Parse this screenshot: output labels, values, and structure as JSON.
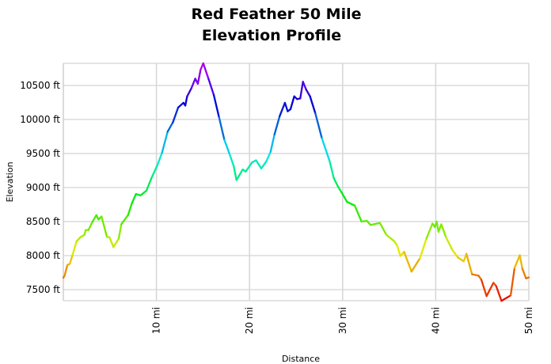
{
  "chart_data": {
    "type": "line",
    "title": "Red Feather 50 Mile",
    "subtitle": "Elevation Profile",
    "xlabel": "Distance",
    "ylabel": "Elevation",
    "xlim": [
      0,
      50
    ],
    "ylim": [
      7340,
      10830
    ],
    "grid": true,
    "legend": "none",
    "color_scale": "rainbow by elevation (red low → magenta high)",
    "x_ticks": [
      {
        "value": 10,
        "label": "10 mi"
      },
      {
        "value": 20,
        "label": "20 mi"
      },
      {
        "value": 30,
        "label": "30 mi"
      },
      {
        "value": 40,
        "label": "40 mi"
      },
      {
        "value": 50,
        "label": "50 mi"
      }
    ],
    "y_ticks": [
      {
        "value": 7500,
        "label": "7500 ft"
      },
      {
        "value": 8000,
        "label": "8000 ft"
      },
      {
        "value": 8500,
        "label": "8500 ft"
      },
      {
        "value": 9000,
        "label": "9000 ft"
      },
      {
        "value": 9500,
        "label": "9500 ft"
      },
      {
        "value": 10000,
        "label": "10000 ft"
      },
      {
        "value": 10500,
        "label": "10500 ft"
      }
    ],
    "series": [
      {
        "x": [
          0,
          0.14,
          0.43,
          0.7,
          1.0,
          1.42,
          1.84,
          2.27,
          2.4,
          2.7,
          3.1,
          3.55,
          3.77,
          4.1,
          4.68,
          4.96,
          5.38,
          5.95,
          6.23,
          6.95,
          7.37,
          7.8,
          8.3,
          8.93,
          9.5,
          10.06,
          10.6,
          11.2,
          11.76,
          12.33,
          12.9,
          13.1,
          13.3,
          13.74,
          14.17,
          14.45,
          14.74,
          15.03,
          15.6,
          16.16,
          16.73,
          17.3,
          17.86,
          18.3,
          18.6,
          19.27,
          19.6,
          20.27,
          20.7,
          21.26,
          21.83,
          22.26,
          22.68,
          23.24,
          23.8,
          24.1,
          24.4,
          24.8,
          25.1,
          25.45,
          25.74,
          26.08,
          26.5,
          27.07,
          27.78,
          28.6,
          29.05,
          29.5,
          29.9,
          30.47,
          31.3,
          32.03,
          32.6,
          33.0,
          34.0,
          34.7,
          35.55,
          35.85,
          36.2,
          36.6,
          37.4,
          38.3,
          39.0,
          39.65,
          39.9,
          40.1,
          40.3,
          40.6,
          41.1,
          41.8,
          42.37,
          43.0,
          43.3,
          43.9,
          44.6,
          44.9,
          45.46,
          46.2,
          46.5,
          47.06,
          48.05,
          48.47,
          49.03,
          49.3,
          49.7,
          50
        ],
        "y": [
          7674,
          7705,
          7860,
          7880,
          8015,
          8210,
          8270,
          8305,
          8375,
          8375,
          8490,
          8595,
          8530,
          8575,
          8275,
          8270,
          8125,
          8250,
          8460,
          8595,
          8770,
          8905,
          8885,
          8955,
          9150,
          9315,
          9510,
          9820,
          9955,
          10175,
          10245,
          10205,
          10340,
          10455,
          10600,
          10525,
          10730,
          10825,
          10595,
          10360,
          10030,
          9700,
          9490,
          9315,
          9110,
          9265,
          9235,
          9370,
          9400,
          9280,
          9390,
          9525,
          9780,
          10050,
          10245,
          10120,
          10150,
          10340,
          10300,
          10310,
          10555,
          10440,
          10340,
          10090,
          9720,
          9390,
          9140,
          9015,
          8925,
          8790,
          8735,
          8500,
          8510,
          8450,
          8480,
          8305,
          8210,
          8150,
          7995,
          8055,
          7765,
          7960,
          8250,
          8470,
          8420,
          8500,
          8350,
          8460,
          8270,
          8080,
          7975,
          7915,
          8025,
          7725,
          7705,
          7645,
          7405,
          7600,
          7550,
          7335,
          7415,
          7820,
          8005,
          7810,
          7665,
          7680
        ]
      }
    ]
  }
}
